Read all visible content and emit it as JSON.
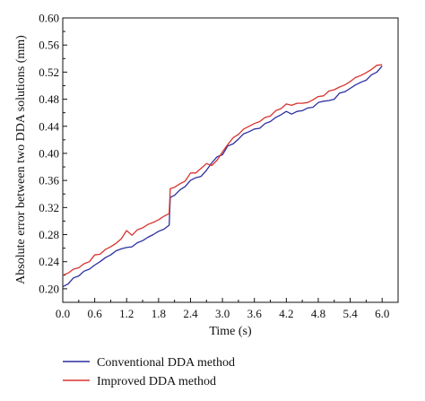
{
  "chart_data": {
    "type": "line",
    "xlabel": "Time (s)",
    "ylabel": "Absolute error between two DDA solutions (mm)",
    "xlim": [
      0.0,
      6.3
    ],
    "ylim": [
      0.18,
      0.6
    ],
    "xticks": [
      "0.0",
      "0.6",
      "1.2",
      "1.8",
      "2.4",
      "3.0",
      "3.6",
      "4.2",
      "4.8",
      "5.4",
      "6.0"
    ],
    "yticks": [
      "0.20",
      "0.24",
      "0.28",
      "0.32",
      "0.36",
      "0.40",
      "0.44",
      "0.48",
      "0.52",
      "0.56",
      "0.60"
    ],
    "legend_position": "bottom-left, below plot",
    "grid": false,
    "series": [
      {
        "name": "Conventional DDA method",
        "color": "#2b2f9e",
        "x": [
          0.0,
          0.1,
          0.2,
          0.3,
          0.4,
          0.5,
          0.6,
          0.7,
          0.8,
          0.9,
          1.0,
          1.1,
          1.2,
          1.3,
          1.4,
          1.5,
          1.6,
          1.7,
          1.8,
          1.9,
          2.0,
          2.02,
          2.1,
          2.2,
          2.3,
          2.4,
          2.5,
          2.6,
          2.7,
          2.8,
          2.9,
          3.0,
          3.1,
          3.2,
          3.3,
          3.4,
          3.5,
          3.6,
          3.7,
          3.8,
          3.9,
          4.0,
          4.1,
          4.2,
          4.3,
          4.4,
          4.5,
          4.6,
          4.7,
          4.8,
          4.9,
          5.0,
          5.1,
          5.2,
          5.3,
          5.4,
          5.5,
          5.6,
          5.7,
          5.8,
          5.9,
          6.0
        ],
        "y": [
          0.203,
          0.207,
          0.216,
          0.219,
          0.226,
          0.229,
          0.235,
          0.24,
          0.246,
          0.25,
          0.256,
          0.259,
          0.261,
          0.262,
          0.268,
          0.271,
          0.276,
          0.28,
          0.285,
          0.288,
          0.294,
          0.335,
          0.338,
          0.346,
          0.351,
          0.36,
          0.364,
          0.366,
          0.375,
          0.386,
          0.395,
          0.398,
          0.411,
          0.414,
          0.421,
          0.429,
          0.432,
          0.436,
          0.437,
          0.444,
          0.447,
          0.453,
          0.457,
          0.462,
          0.458,
          0.462,
          0.463,
          0.467,
          0.468,
          0.475,
          0.477,
          0.478,
          0.48,
          0.489,
          0.491,
          0.496,
          0.501,
          0.505,
          0.508,
          0.516,
          0.52,
          0.529
        ]
      },
      {
        "name": "Improved DDA method",
        "color": "#d8332f",
        "x": [
          0.0,
          0.1,
          0.2,
          0.3,
          0.4,
          0.5,
          0.6,
          0.7,
          0.8,
          0.9,
          1.0,
          1.1,
          1.2,
          1.3,
          1.4,
          1.5,
          1.6,
          1.7,
          1.8,
          1.9,
          2.0,
          2.02,
          2.1,
          2.2,
          2.3,
          2.4,
          2.5,
          2.6,
          2.7,
          2.8,
          2.9,
          3.0,
          3.1,
          3.2,
          3.3,
          3.4,
          3.5,
          3.6,
          3.7,
          3.8,
          3.9,
          4.0,
          4.1,
          4.2,
          4.3,
          4.4,
          4.5,
          4.6,
          4.7,
          4.8,
          4.9,
          5.0,
          5.1,
          5.2,
          5.3,
          5.4,
          5.5,
          5.6,
          5.7,
          5.8,
          5.9,
          6.0
        ],
        "y": [
          0.22,
          0.223,
          0.229,
          0.231,
          0.237,
          0.24,
          0.25,
          0.251,
          0.258,
          0.262,
          0.267,
          0.274,
          0.286,
          0.279,
          0.287,
          0.29,
          0.295,
          0.298,
          0.302,
          0.307,
          0.311,
          0.348,
          0.35,
          0.355,
          0.359,
          0.371,
          0.371,
          0.378,
          0.385,
          0.382,
          0.39,
          0.402,
          0.413,
          0.423,
          0.428,
          0.436,
          0.44,
          0.444,
          0.447,
          0.453,
          0.455,
          0.463,
          0.466,
          0.473,
          0.471,
          0.474,
          0.474,
          0.475,
          0.479,
          0.484,
          0.485,
          0.492,
          0.494,
          0.498,
          0.501,
          0.506,
          0.512,
          0.515,
          0.519,
          0.524,
          0.53,
          0.531
        ]
      }
    ]
  }
}
